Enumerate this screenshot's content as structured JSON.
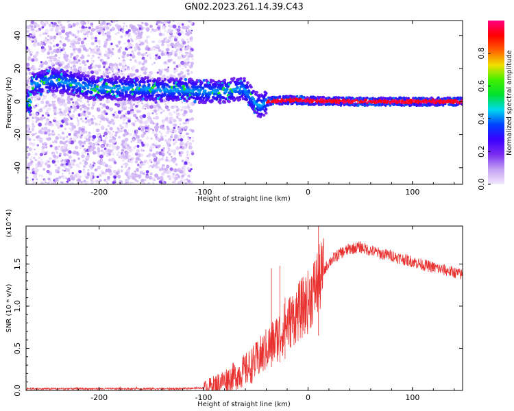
{
  "title": "GN02.2023.261.14.39.C43",
  "chart_data": [
    {
      "type": "heatmap",
      "xlabel": "Height of straight line (km)",
      "ylabel": "Frequency (Hz)",
      "xlim": [
        -270,
        148
      ],
      "ylim": [
        -50,
        49
      ],
      "xticks": [
        -200,
        -100,
        0,
        100
      ],
      "yticks": [
        -40,
        -20,
        0,
        20,
        40
      ],
      "colorbar": {
        "label": "Normalized spectral amplitude",
        "range": [
          0,
          1
        ],
        "ticks": [
          "0.0",
          "0.2",
          "0.4",
          "0.6",
          "0.8"
        ],
        "tick_values": [
          0,
          0.2,
          0.4,
          0.6,
          0.8
        ],
        "colors": [
          "#f2e8fb",
          "#c3a2f3",
          "#7a2df0",
          "#3a00ff",
          "#0040ff",
          "#00d8f0",
          "#00e030",
          "#40f000",
          "#f0e000",
          "#ff6000",
          "#ff0000",
          "#ff0080"
        ]
      },
      "noise_region": [
        -270,
        -110
      ],
      "ridge": [
        {
          "x": -265,
          "y": 10
        },
        {
          "x": -245,
          "y": 13
        },
        {
          "x": -225,
          "y": 11
        },
        {
          "x": -205,
          "y": 8
        },
        {
          "x": -180,
          "y": 8
        },
        {
          "x": -160,
          "y": 8
        },
        {
          "x": -140,
          "y": 7
        },
        {
          "x": -120,
          "y": 7
        },
        {
          "x": -100,
          "y": 6
        },
        {
          "x": -85,
          "y": 6
        },
        {
          "x": -72,
          "y": 7
        },
        {
          "x": -62,
          "y": 8
        },
        {
          "x": -55,
          "y": 3
        },
        {
          "x": -50,
          "y": -1
        },
        {
          "x": -45,
          "y": -3
        },
        {
          "x": -40,
          "y": 0
        },
        {
          "x": -30,
          "y": 0.5
        },
        {
          "x": -15,
          "y": 1
        },
        {
          "x": 0,
          "y": 0.5
        },
        {
          "x": 50,
          "y": 0
        },
        {
          "x": 148,
          "y": 0
        }
      ]
    },
    {
      "type": "line",
      "xlabel": "Height of straight line (km)",
      "ylabel": "SNR (10 * v/v)",
      "y_multiplier": "(x10^4)",
      "xlim": [
        -270,
        148
      ],
      "ylim": [
        0,
        1.95
      ],
      "xticks": [
        -200,
        -100,
        0,
        100
      ],
      "yticks": [
        0,
        0.5,
        1,
        1.5
      ],
      "ytick_labels": [
        "0.0",
        "0.5",
        "1.0",
        "1.5"
      ],
      "color": "#e8312f",
      "trend": [
        {
          "x": -270,
          "y": 0.02
        },
        {
          "x": -200,
          "y": 0.02
        },
        {
          "x": -120,
          "y": 0.02
        },
        {
          "x": -100,
          "y": 0.03
        },
        {
          "x": -90,
          "y": 0.07
        },
        {
          "x": -80,
          "y": 0.12
        },
        {
          "x": -70,
          "y": 0.17
        },
        {
          "x": -60,
          "y": 0.24
        },
        {
          "x": -50,
          "y": 0.34
        },
        {
          "x": -40,
          "y": 0.48
        },
        {
          "x": -30,
          "y": 0.62
        },
        {
          "x": -20,
          "y": 0.78
        },
        {
          "x": -10,
          "y": 0.92
        },
        {
          "x": 0,
          "y": 1.05
        },
        {
          "x": 10,
          "y": 1.3
        },
        {
          "x": 20,
          "y": 1.52
        },
        {
          "x": 30,
          "y": 1.62
        },
        {
          "x": 40,
          "y": 1.68
        },
        {
          "x": 50,
          "y": 1.7
        },
        {
          "x": 60,
          "y": 1.66
        },
        {
          "x": 70,
          "y": 1.62
        },
        {
          "x": 80,
          "y": 1.6
        },
        {
          "x": 90,
          "y": 1.56
        },
        {
          "x": 100,
          "y": 1.53
        },
        {
          "x": 110,
          "y": 1.49
        },
        {
          "x": 120,
          "y": 1.46
        },
        {
          "x": 130,
          "y": 1.43
        },
        {
          "x": 140,
          "y": 1.4
        },
        {
          "x": 148,
          "y": 1.37
        }
      ],
      "peaks": [
        {
          "x": -35,
          "y": 1.45
        },
        {
          "x": -27,
          "y": 1.48
        },
        {
          "x": -22,
          "y": 1.1
        },
        {
          "x": 10,
          "y": 1.95
        }
      ]
    }
  ]
}
